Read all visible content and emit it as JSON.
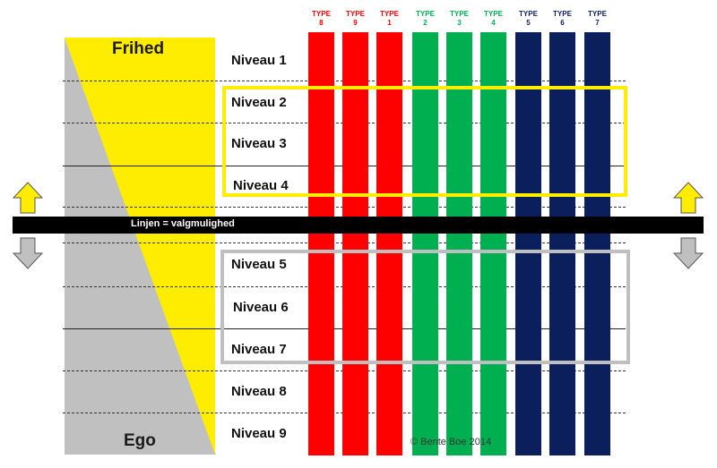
{
  "top_label": "Frihed",
  "bottom_label": "Ego",
  "line_label": "Linjen = valgmulighed",
  "copyright": "© Bente Boe 2014",
  "levels": [
    "Niveau 1",
    "Niveau 2",
    "Niveau 3",
    "Niveau 4",
    "Niveau 5",
    "Niveau 6",
    "Niveau 7",
    "Niveau 8",
    "Niveau 9"
  ],
  "types": [
    {
      "word": "TYPE",
      "num": "8",
      "color": "#ff0000"
    },
    {
      "word": "TYPE",
      "num": "9",
      "color": "#ff0000"
    },
    {
      "word": "TYPE",
      "num": "1",
      "color": "#ff0000"
    },
    {
      "word": "TYPE",
      "num": "2",
      "color": "#00b050"
    },
    {
      "word": "TYPE",
      "num": "3",
      "color": "#00b050"
    },
    {
      "word": "TYPE",
      "num": "4",
      "color": "#00b050"
    },
    {
      "word": "TYPE",
      "num": "5",
      "color": "#0b1f5c"
    },
    {
      "word": "TYPE",
      "num": "6",
      "color": "#0b1f5c"
    },
    {
      "word": "TYPE",
      "num": "7",
      "color": "#0b1f5c"
    }
  ],
  "colors": {
    "yellow": "#ffed00",
    "gray": "#c0c0c0",
    "black": "#000000",
    "frame_yellow": "#ffed00",
    "frame_gray": "#bfbfbf"
  },
  "icons": {
    "up_arrow": "arrow-up-icon",
    "down_arrow": "arrow-down-icon"
  }
}
